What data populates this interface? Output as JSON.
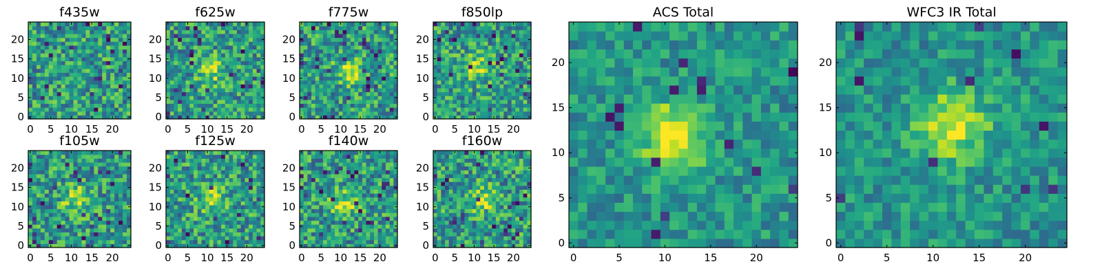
{
  "chart_data": [
    {
      "type": "heatmap",
      "title": "f435w",
      "xlim": [
        -0.5,
        24.5
      ],
      "ylim": [
        -0.5,
        24.5
      ],
      "x_ticks": [
        0,
        5,
        10,
        15,
        20
      ],
      "y_ticks": [
        0,
        5,
        10,
        15,
        20
      ],
      "colormap": "viridis",
      "grid": false,
      "source_center": null
    },
    {
      "type": "heatmap",
      "title": "f625w",
      "xlim": [
        -0.5,
        24.5
      ],
      "ylim": [
        -0.5,
        24.5
      ],
      "x_ticks": [
        0,
        5,
        10,
        15,
        20
      ],
      "y_ticks": [
        0,
        5,
        10,
        15,
        20
      ],
      "colormap": "viridis",
      "grid": false,
      "source_center": [
        11,
        12
      ]
    },
    {
      "type": "heatmap",
      "title": "f775w",
      "xlim": [
        -0.5,
        24.5
      ],
      "ylim": [
        -0.5,
        24.5
      ],
      "x_ticks": [
        0,
        5,
        10,
        15,
        20
      ],
      "y_ticks": [
        0,
        5,
        10,
        15,
        20
      ],
      "colormap": "viridis",
      "grid": false,
      "source_center": [
        12,
        12
      ]
    },
    {
      "type": "heatmap",
      "title": "f850lp",
      "xlim": [
        -0.5,
        24.5
      ],
      "ylim": [
        -0.5,
        24.5
      ],
      "x_ticks": [
        0,
        5,
        10,
        15,
        20
      ],
      "y_ticks": [
        0,
        5,
        10,
        15,
        20
      ],
      "colormap": "viridis",
      "grid": false,
      "source_center": [
        11,
        13
      ]
    },
    {
      "type": "heatmap",
      "title": "f105w",
      "xlim": [
        -0.5,
        24.5
      ],
      "ylim": [
        -0.5,
        24.5
      ],
      "x_ticks": [
        0,
        5,
        10,
        15,
        20
      ],
      "y_ticks": [
        0,
        5,
        10,
        15,
        20
      ],
      "colormap": "viridis",
      "grid": false,
      "source_center": [
        11,
        12
      ]
    },
    {
      "type": "heatmap",
      "title": "f125w",
      "xlim": [
        -0.5,
        24.5
      ],
      "ylim": [
        -0.5,
        24.5
      ],
      "x_ticks": [
        0,
        5,
        10,
        15,
        20
      ],
      "y_ticks": [
        0,
        5,
        10,
        15,
        20
      ],
      "colormap": "viridis",
      "grid": false,
      "source_center": [
        11,
        12
      ]
    },
    {
      "type": "heatmap",
      "title": "f140w",
      "xlim": [
        -0.5,
        24.5
      ],
      "ylim": [
        -0.5,
        24.5
      ],
      "x_ticks": [
        0,
        5,
        10,
        15,
        20
      ],
      "y_ticks": [
        0,
        5,
        10,
        15,
        20
      ],
      "colormap": "viridis",
      "grid": false,
      "source_center": [
        11,
        11
      ]
    },
    {
      "type": "heatmap",
      "title": "f160w",
      "xlim": [
        -0.5,
        24.5
      ],
      "ylim": [
        -0.5,
        24.5
      ],
      "x_ticks": [
        0,
        5,
        10,
        15,
        20
      ],
      "y_ticks": [
        0,
        5,
        10,
        15,
        20
      ],
      "colormap": "viridis",
      "grid": false,
      "source_center": [
        12,
        12
      ]
    },
    {
      "type": "heatmap",
      "title": "ACS Total",
      "xlim": [
        -0.5,
        24.5
      ],
      "ylim": [
        -0.5,
        24.5
      ],
      "x_ticks": [
        0,
        5,
        10,
        15,
        20
      ],
      "y_ticks": [
        0,
        5,
        10,
        15,
        20
      ],
      "colormap": "viridis",
      "grid": false,
      "source_center": [
        11,
        12
      ]
    },
    {
      "type": "heatmap",
      "title": "WFC3 IR Total",
      "xlim": [
        -0.5,
        24.5
      ],
      "ylim": [
        -0.5,
        24.5
      ],
      "x_ticks": [
        0,
        5,
        10,
        15,
        20
      ],
      "y_ticks": [
        0,
        5,
        10,
        15,
        20
      ],
      "colormap": "viridis",
      "grid": false,
      "source_center": [
        12,
        13
      ]
    }
  ]
}
